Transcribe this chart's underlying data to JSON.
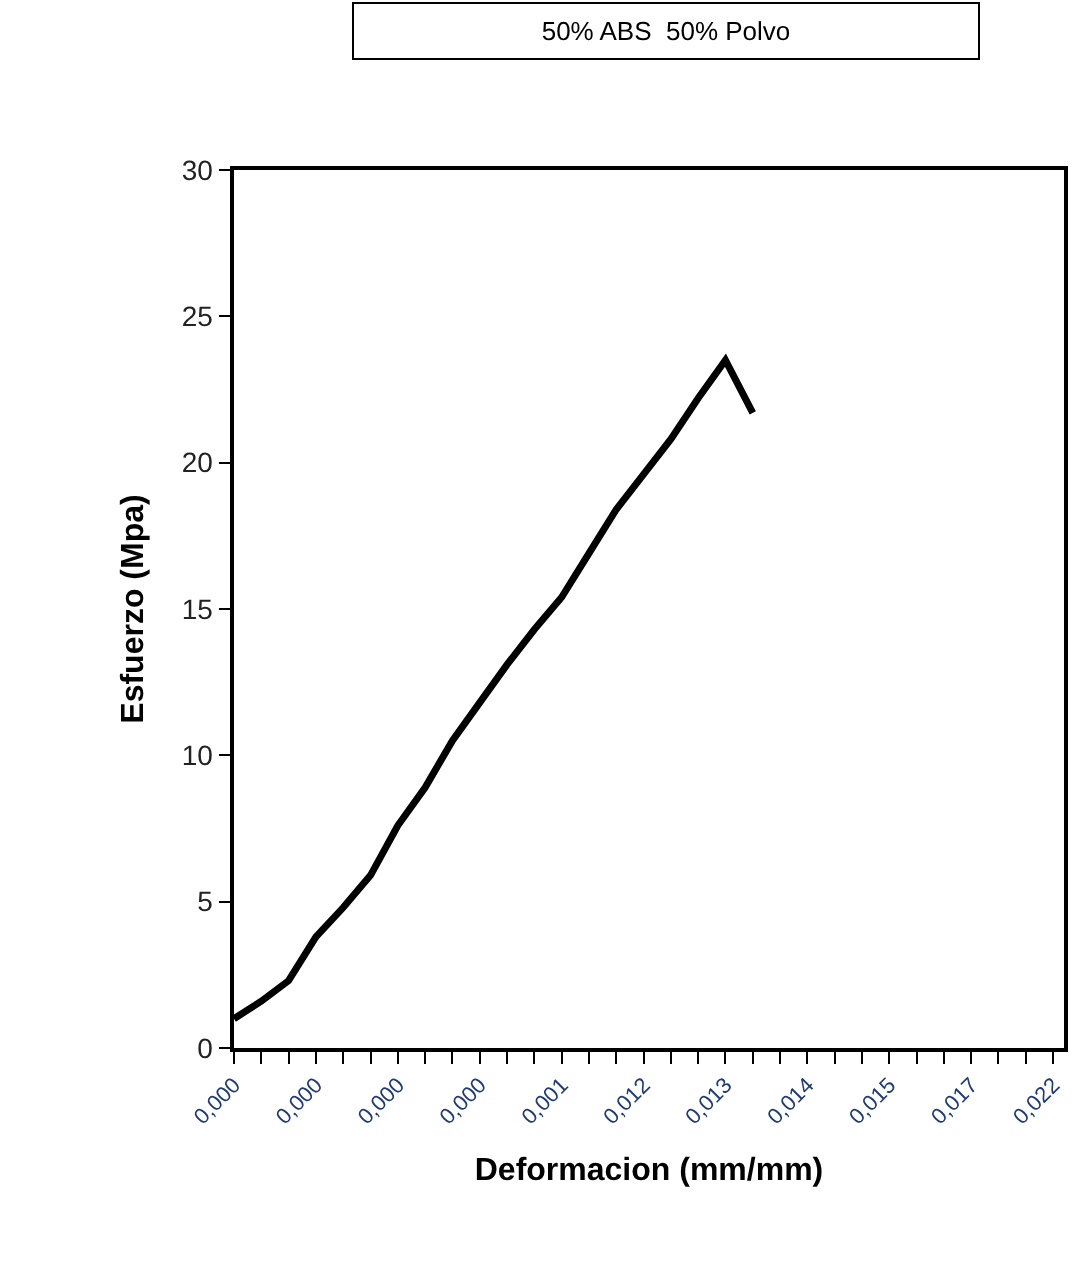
{
  "chart_data": {
    "type": "line",
    "title": "50% ABS  50% Polvo",
    "xlabel": "Deformacion (mm/mm)",
    "ylabel": "Esfuerzo (Mpa)",
    "categories": [
      "0,000",
      null,
      null,
      "0,000",
      null,
      null,
      "0,000",
      null,
      null,
      "0,000",
      null,
      null,
      "0,001",
      null,
      null,
      "0,012",
      null,
      null,
      "0,013",
      null,
      null,
      "0,014",
      null,
      null,
      "0,015",
      null,
      null,
      "0,017",
      null,
      null,
      "0,022"
    ],
    "series": [
      {
        "color": "#000000",
        "values": [
          1.0,
          1.6,
          2.3,
          3.8,
          4.8,
          5.9,
          7.6,
          8.9,
          10.5,
          11.8,
          13.1,
          14.3,
          15.4,
          16.9,
          18.4,
          19.6,
          20.8,
          22.2,
          23.5,
          21.7,
          null,
          null,
          null,
          null,
          null,
          null,
          null,
          null,
          null,
          null,
          null
        ]
      }
    ],
    "ylim": [
      0,
      30
    ],
    "yticks": [
      0,
      5,
      10,
      15,
      20,
      25,
      30
    ],
    "marker": "none",
    "line_style": "solid"
  }
}
